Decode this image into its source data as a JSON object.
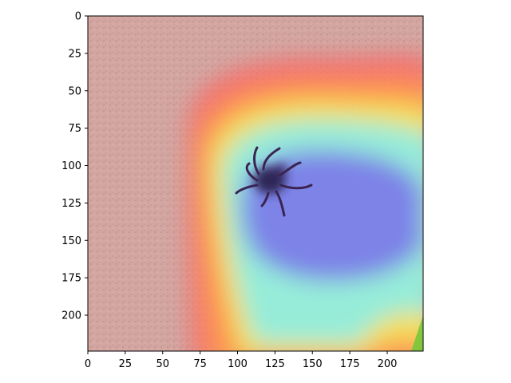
{
  "chart_data": {
    "type": "heatmap",
    "title": "",
    "xlabel": "",
    "ylabel": "",
    "xlim": [
      0,
      224
    ],
    "ylim": [
      224,
      0
    ],
    "x_ticks": [
      0,
      25,
      50,
      75,
      100,
      125,
      150,
      175,
      200
    ],
    "y_ticks": [
      0,
      25,
      50,
      75,
      100,
      125,
      150,
      175,
      200
    ],
    "x_tick_labels": [
      "0",
      "25",
      "50",
      "75",
      "100",
      "125",
      "150",
      "175",
      "200"
    ],
    "y_tick_labels": [
      "0",
      "25",
      "50",
      "75",
      "100",
      "125",
      "150",
      "175",
      "200"
    ],
    "grid": false,
    "colormap": "jet",
    "overlay": "attention heatmap over photo of a tick on skin",
    "hotspot_center": [
      165,
      130
    ],
    "colors": {
      "skin": "#c49a92",
      "low": "#e8aaa8",
      "red": "#ff5a5a",
      "yellow": "#eef05a",
      "cyan": "#7fe8ee",
      "blue": "#7a78e6",
      "tick_body": "#2b2150"
    }
  }
}
